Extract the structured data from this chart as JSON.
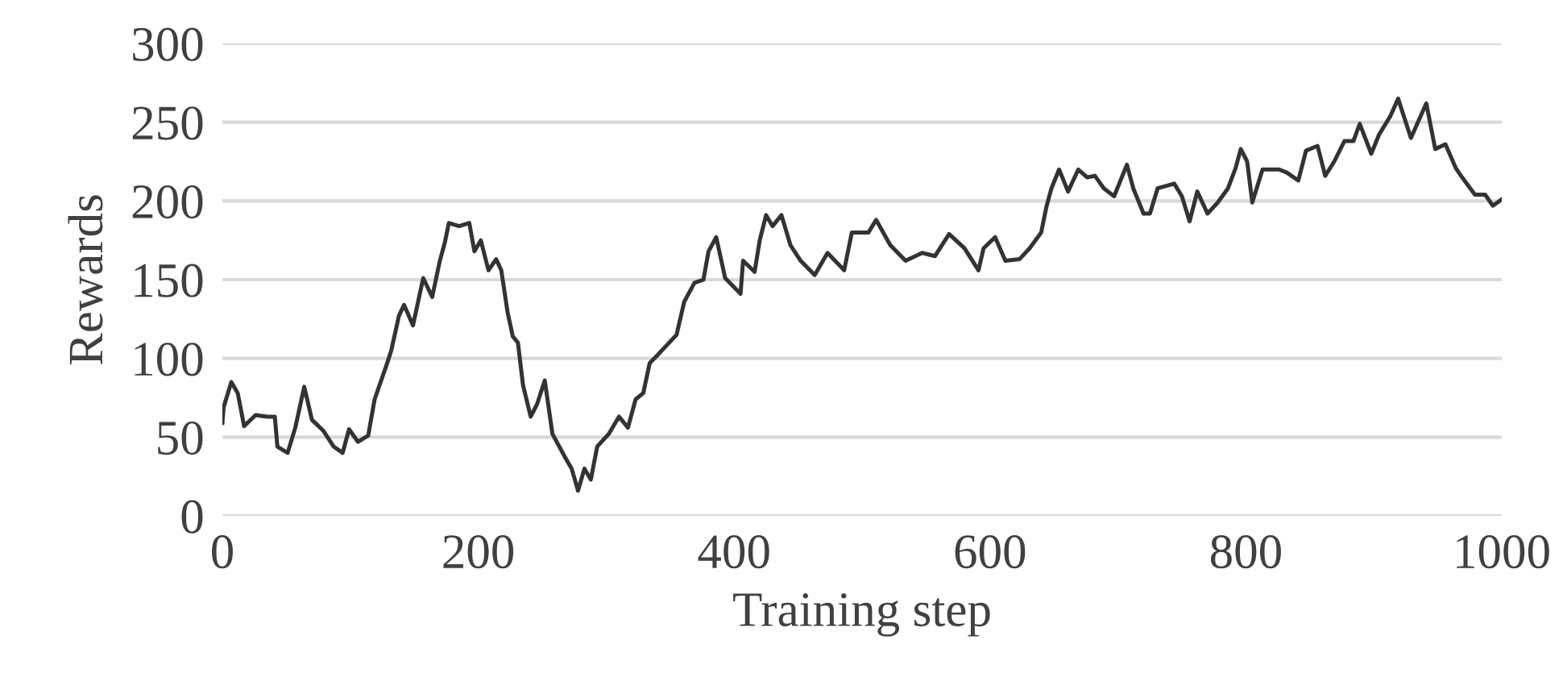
{
  "chart_data": {
    "type": "line",
    "xlabel": "Training step",
    "ylabel": "Rewards",
    "xlim": [
      0,
      1000
    ],
    "xticks": [
      0,
      200,
      400,
      600,
      800,
      1000
    ],
    "ylim": [
      0,
      300
    ],
    "yticks": [
      0,
      50,
      100,
      150,
      200,
      250,
      300
    ],
    "grid": "y",
    "legend": false,
    "marker": "none",
    "line_style": "solid",
    "series": [
      {
        "color": "#333333",
        "x": [
          0,
          1,
          7,
          12,
          17,
          26,
          35,
          41,
          43,
          51,
          57,
          64,
          70,
          79,
          87,
          94,
          99,
          106,
          114,
          119,
          128,
          132,
          138,
          142,
          149,
          157,
          164,
          170,
          174,
          177,
          185,
          193,
          197,
          202,
          208,
          214,
          218,
          223,
          227,
          231,
          235,
          241,
          246,
          252,
          258,
          268,
          273,
          278,
          283,
          288,
          293,
          302,
          310,
          317,
          323,
          329,
          334,
          340,
          355,
          361,
          369,
          376,
          380,
          386,
          393,
          399,
          405,
          407,
          416,
          420,
          425,
          430,
          437,
          444,
          452,
          463,
          473,
          486,
          492,
          505,
          511,
          522,
          534,
          547,
          557,
          568,
          580,
          591,
          595,
          604,
          612,
          623,
          631,
          640,
          644,
          648,
          654,
          661,
          669,
          676,
          682,
          689,
          697,
          707,
          712,
          720,
          725,
          731,
          744,
          750,
          756,
          762,
          770,
          778,
          786,
          792,
          796,
          801,
          805,
          813,
          826,
          832,
          841,
          847,
          856,
          862,
          869,
          877,
          884,
          889,
          898,
          904,
          913,
          919,
          923,
          929,
          941,
          948,
          956,
          964,
          969,
          979,
          987,
          993,
          1000
        ],
        "values": [
          59,
          69,
          85,
          78,
          57,
          64,
          63,
          63,
          44,
          40,
          56,
          82,
          61,
          54,
          44,
          40,
          55,
          47,
          51,
          74,
          95,
          105,
          127,
          134,
          121,
          151,
          139,
          162,
          174,
          186,
          184,
          186,
          168,
          175,
          156,
          163,
          156,
          129,
          114,
          110,
          83,
          63,
          71,
          86,
          52,
          37,
          30,
          16,
          30,
          23,
          44,
          52,
          63,
          56,
          74,
          78,
          97,
          102,
          115,
          136,
          148,
          150,
          168,
          177,
          151,
          146,
          141,
          162,
          155,
          175,
          191,
          184,
          191,
          172,
          162,
          153,
          167,
          156,
          180,
          180,
          188,
          172,
          162,
          167,
          165,
          179,
          170,
          156,
          170,
          177,
          162,
          163,
          170,
          180,
          196,
          208,
          220,
          206,
          220,
          215,
          216,
          208,
          203,
          223,
          208,
          192,
          192,
          208,
          211,
          203,
          187,
          206,
          192,
          199,
          208,
          221,
          233,
          225,
          199,
          220,
          220,
          218,
          213,
          232,
          235,
          216,
          225,
          238,
          238,
          249,
          230,
          242,
          254,
          265,
          255,
          240,
          262,
          233,
          236,
          221,
          215,
          204,
          204,
          197,
          201
        ]
      }
    ]
  }
}
